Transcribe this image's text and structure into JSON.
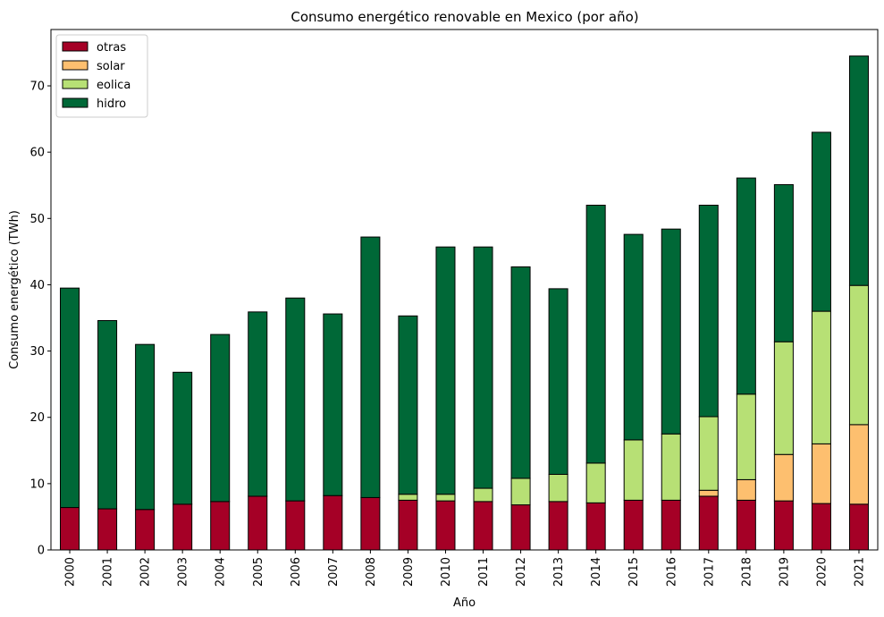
{
  "chart_data": {
    "type": "bar",
    "stacked": true,
    "title": "Consumo energético renovable en Mexico (por año)",
    "xlabel": "Año",
    "ylabel": "Consumo energético (TWh)",
    "ylim": [
      0,
      78.5
    ],
    "yticks": [
      0,
      10,
      20,
      30,
      40,
      50,
      60,
      70
    ],
    "grid": false,
    "legend_position": "top-left",
    "categories": [
      "2000",
      "2001",
      "2002",
      "2003",
      "2004",
      "2005",
      "2006",
      "2007",
      "2008",
      "2009",
      "2010",
      "2011",
      "2012",
      "2013",
      "2014",
      "2015",
      "2016",
      "2017",
      "2018",
      "2019",
      "2020",
      "2021"
    ],
    "series": [
      {
        "name": "otras",
        "color": "#a50026",
        "values": [
          6.4,
          6.2,
          6.1,
          6.9,
          7.3,
          8.1,
          7.4,
          8.2,
          7.9,
          7.5,
          7.4,
          7.3,
          6.8,
          7.3,
          7.1,
          7.5,
          7.5,
          8.1,
          7.5,
          7.4,
          7.0,
          6.9
        ]
      },
      {
        "name": "solar",
        "color": "#fdbf6f",
        "values": [
          0.0,
          0.0,
          0.0,
          0.0,
          0.0,
          0.0,
          0.0,
          0.0,
          0.0,
          0.0,
          0.0,
          0.0,
          0.0,
          0.0,
          0.0,
          0.0,
          0.0,
          0.9,
          3.1,
          7.0,
          9.0,
          12.0
        ]
      },
      {
        "name": "eolica",
        "color": "#b7e075",
        "values": [
          0.0,
          0.0,
          0.0,
          0.0,
          0.0,
          0.0,
          0.0,
          0.0,
          0.0,
          0.9,
          1.0,
          2.0,
          4.0,
          4.1,
          6.0,
          9.1,
          10.0,
          11.1,
          12.9,
          17.0,
          20.0,
          21.0
        ]
      },
      {
        "name": "hidro",
        "color": "#006837",
        "values": [
          33.1,
          28.4,
          24.9,
          19.9,
          25.2,
          27.8,
          30.6,
          27.4,
          39.3,
          26.9,
          37.3,
          36.4,
          31.9,
          28.0,
          38.9,
          31.0,
          30.9,
          31.9,
          32.6,
          23.7,
          27.0,
          34.6
        ]
      }
    ]
  }
}
